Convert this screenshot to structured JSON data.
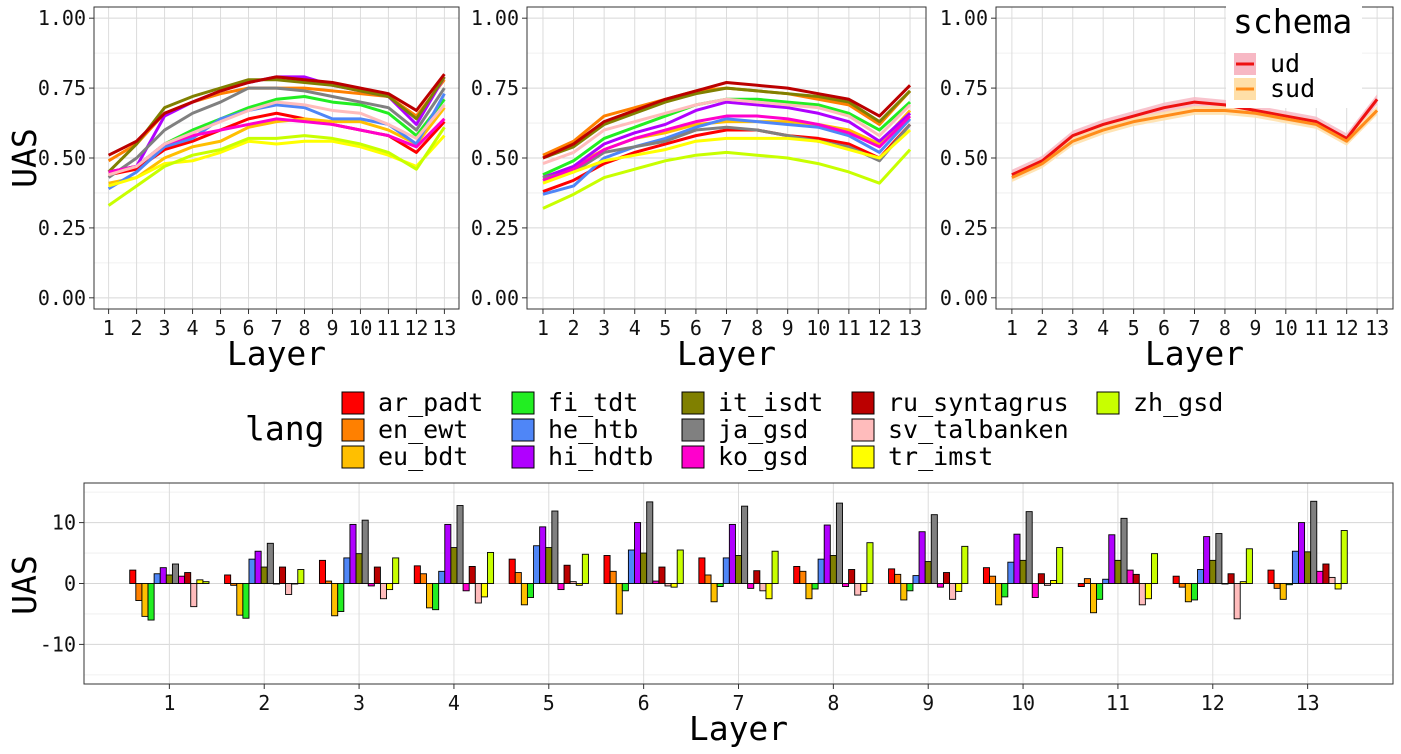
{
  "colors": {
    "ar_padt": "#ff0000",
    "en_ewt": "#ff8000",
    "eu_bdt": "#ffbf00",
    "fi_tdt": "#22ee22",
    "he_htb": "#4f86f7",
    "hi_hdtb": "#b000ff",
    "it_isdt": "#808000",
    "ja_gsd": "#808080",
    "ko_gsd": "#ff00cc",
    "ru_syntagrus": "#bb0000",
    "sv_talbanken": "#ffbcbc",
    "tr_imst": "#ffff00",
    "zh_gsd": "#c8ff00",
    "ud": "#ee1111",
    "ud_band": "#f7b8c4",
    "sud": "#ff8c1a",
    "sud_band": "#ffdfa8"
  },
  "legend_lang": {
    "title": "lang",
    "items": [
      "ar_padt",
      "en_ewt",
      "eu_bdt",
      "fi_tdt",
      "he_htb",
      "hi_hdtb",
      "it_isdt",
      "ja_gsd",
      "ko_gsd",
      "ru_syntagrus",
      "sv_talbanken",
      "tr_imst",
      "zh_gsd"
    ]
  },
  "legend_schema": {
    "title": "schema",
    "items": [
      "ud",
      "sud"
    ]
  },
  "chart_data": [
    {
      "type": "line",
      "xlabel": "Layer",
      "ylabel": "UAS",
      "x": [
        1,
        2,
        3,
        4,
        5,
        6,
        7,
        8,
        9,
        10,
        11,
        12,
        13
      ],
      "ylim": [
        -0.04,
        1.04
      ],
      "yticks": [
        "0.00",
        "0.25",
        "0.50",
        "0.75",
        "1.00"
      ],
      "grid": true,
      "series": [
        {
          "name": "ar_padt",
          "values": [
            0.44,
            0.46,
            0.53,
            0.56,
            0.6,
            0.64,
            0.66,
            0.64,
            0.62,
            0.6,
            0.58,
            0.52,
            0.63
          ]
        },
        {
          "name": "en_ewt",
          "values": [
            0.49,
            0.55,
            0.66,
            0.7,
            0.73,
            0.75,
            0.75,
            0.75,
            0.74,
            0.73,
            0.72,
            0.65,
            0.78
          ]
        },
        {
          "name": "eu_bdt",
          "values": [
            0.41,
            0.43,
            0.5,
            0.54,
            0.56,
            0.61,
            0.63,
            0.64,
            0.63,
            0.63,
            0.6,
            0.55,
            0.68
          ]
        },
        {
          "name": "fi_tdt",
          "values": [
            0.45,
            0.47,
            0.55,
            0.6,
            0.64,
            0.68,
            0.71,
            0.72,
            0.7,
            0.69,
            0.66,
            0.58,
            0.71
          ]
        },
        {
          "name": "he_htb",
          "values": [
            0.39,
            0.45,
            0.54,
            0.57,
            0.64,
            0.67,
            0.69,
            0.68,
            0.64,
            0.64,
            0.62,
            0.55,
            0.73
          ]
        },
        {
          "name": "hi_hdtb",
          "values": [
            0.45,
            0.47,
            0.65,
            0.7,
            0.74,
            0.77,
            0.79,
            0.79,
            0.76,
            0.74,
            0.72,
            0.62,
            0.79
          ]
        },
        {
          "name": "it_isdt",
          "values": [
            0.45,
            0.55,
            0.68,
            0.72,
            0.75,
            0.78,
            0.78,
            0.77,
            0.76,
            0.74,
            0.72,
            0.64,
            0.79
          ]
        },
        {
          "name": "ja_gsd",
          "values": [
            0.43,
            0.5,
            0.6,
            0.66,
            0.7,
            0.75,
            0.75,
            0.74,
            0.72,
            0.7,
            0.68,
            0.6,
            0.75
          ]
        },
        {
          "name": "ko_gsd",
          "values": [
            0.45,
            0.47,
            0.55,
            0.58,
            0.6,
            0.62,
            0.64,
            0.63,
            0.62,
            0.6,
            0.58,
            0.54,
            0.64
          ]
        },
        {
          "name": "ru_syntagrus",
          "values": [
            0.51,
            0.56,
            0.66,
            0.7,
            0.74,
            0.77,
            0.79,
            0.78,
            0.77,
            0.75,
            0.73,
            0.67,
            0.8
          ]
        },
        {
          "name": "sv_talbanken",
          "values": [
            0.44,
            0.47,
            0.55,
            0.59,
            0.63,
            0.67,
            0.7,
            0.69,
            0.67,
            0.66,
            0.62,
            0.57,
            0.69
          ]
        },
        {
          "name": "tr_imst",
          "values": [
            0.4,
            0.43,
            0.48,
            0.49,
            0.52,
            0.56,
            0.55,
            0.56,
            0.56,
            0.54,
            0.51,
            0.47,
            0.58
          ]
        },
        {
          "name": "zh_gsd",
          "values": [
            0.33,
            0.4,
            0.47,
            0.51,
            0.53,
            0.57,
            0.57,
            0.58,
            0.57,
            0.55,
            0.52,
            0.46,
            0.61
          ]
        }
      ]
    },
    {
      "type": "line",
      "xlabel": "Layer",
      "ylabel": "",
      "x": [
        1,
        2,
        3,
        4,
        5,
        6,
        7,
        8,
        9,
        10,
        11,
        12,
        13
      ],
      "ylim": [
        -0.04,
        1.04
      ],
      "yticks": [
        "0.00",
        "0.25",
        "0.50",
        "0.75",
        "1.00"
      ],
      "grid": true,
      "series": [
        {
          "name": "ar_padt",
          "values": [
            0.38,
            0.42,
            0.48,
            0.52,
            0.55,
            0.58,
            0.6,
            0.6,
            0.58,
            0.57,
            0.55,
            0.5,
            0.62
          ]
        },
        {
          "name": "en_ewt",
          "values": [
            0.51,
            0.56,
            0.65,
            0.68,
            0.71,
            0.74,
            0.75,
            0.74,
            0.73,
            0.71,
            0.69,
            0.62,
            0.74
          ]
        },
        {
          "name": "eu_bdt",
          "values": [
            0.43,
            0.47,
            0.53,
            0.57,
            0.59,
            0.62,
            0.63,
            0.63,
            0.63,
            0.62,
            0.6,
            0.55,
            0.67
          ]
        },
        {
          "name": "fi_tdt",
          "values": [
            0.44,
            0.49,
            0.57,
            0.61,
            0.65,
            0.69,
            0.71,
            0.71,
            0.7,
            0.69,
            0.66,
            0.6,
            0.7
          ]
        },
        {
          "name": "he_htb",
          "values": [
            0.37,
            0.4,
            0.5,
            0.54,
            0.57,
            0.61,
            0.64,
            0.63,
            0.62,
            0.61,
            0.58,
            0.52,
            0.64
          ]
        },
        {
          "name": "hi_hdtb",
          "values": [
            0.43,
            0.47,
            0.55,
            0.59,
            0.62,
            0.67,
            0.7,
            0.69,
            0.68,
            0.66,
            0.63,
            0.56,
            0.66
          ]
        },
        {
          "name": "it_isdt",
          "values": [
            0.5,
            0.54,
            0.62,
            0.66,
            0.7,
            0.73,
            0.75,
            0.74,
            0.73,
            0.72,
            0.7,
            0.63,
            0.74
          ]
        },
        {
          "name": "ja_gsd",
          "values": [
            0.43,
            0.45,
            0.52,
            0.54,
            0.56,
            0.6,
            0.61,
            0.6,
            0.58,
            0.56,
            0.54,
            0.49,
            0.62
          ]
        },
        {
          "name": "ko_gsd",
          "values": [
            0.42,
            0.46,
            0.53,
            0.57,
            0.6,
            0.63,
            0.65,
            0.65,
            0.64,
            0.62,
            0.59,
            0.54,
            0.65
          ]
        },
        {
          "name": "ru_syntagrus",
          "values": [
            0.5,
            0.55,
            0.63,
            0.67,
            0.71,
            0.74,
            0.77,
            0.76,
            0.75,
            0.73,
            0.71,
            0.65,
            0.76
          ]
        },
        {
          "name": "sv_talbanken",
          "values": [
            0.48,
            0.52,
            0.6,
            0.63,
            0.66,
            0.69,
            0.71,
            0.7,
            0.69,
            0.68,
            0.65,
            0.58,
            0.69
          ]
        },
        {
          "name": "tr_imst",
          "values": [
            0.41,
            0.45,
            0.49,
            0.51,
            0.53,
            0.56,
            0.57,
            0.57,
            0.57,
            0.56,
            0.53,
            0.5,
            0.6
          ]
        },
        {
          "name": "zh_gsd",
          "values": [
            0.32,
            0.37,
            0.43,
            0.46,
            0.49,
            0.51,
            0.52,
            0.51,
            0.5,
            0.48,
            0.45,
            0.41,
            0.53
          ]
        }
      ]
    },
    {
      "type": "line",
      "xlabel": "Layer",
      "ylabel": "",
      "x": [
        1,
        2,
        3,
        4,
        5,
        6,
        7,
        8,
        9,
        10,
        11,
        12,
        13
      ],
      "ylim": [
        -0.04,
        1.04
      ],
      "yticks": [
        "0.00",
        "0.25",
        "0.50",
        "0.75",
        "1.00"
      ],
      "grid": true,
      "series": [
        {
          "name": "ud",
          "values": [
            0.44,
            0.49,
            0.58,
            0.62,
            0.65,
            0.68,
            0.7,
            0.69,
            0.67,
            0.65,
            0.63,
            0.57,
            0.71
          ],
          "band": 0.018
        },
        {
          "name": "sud",
          "values": [
            0.43,
            0.48,
            0.56,
            0.6,
            0.63,
            0.65,
            0.67,
            0.67,
            0.66,
            0.64,
            0.62,
            0.56,
            0.67
          ],
          "band": 0.016
        }
      ]
    },
    {
      "type": "bar",
      "xlabel": "Layer",
      "ylabel": "UAS",
      "categories": [
        "1",
        "2",
        "3",
        "4",
        "5",
        "6",
        "7",
        "8",
        "9",
        "10",
        "11",
        "12",
        "13"
      ],
      "ylim": [
        -16.5,
        16.5
      ],
      "yticks": [
        -10,
        0,
        10
      ],
      "grid": true,
      "series": [
        {
          "name": "ar_padt",
          "values": [
            2.2,
            1.4,
            3.8,
            2.9,
            4,
            4.6,
            4.2,
            2.8,
            2.4,
            2.6,
            -0.5,
            1.2,
            2.2
          ]
        },
        {
          "name": "en_ewt",
          "values": [
            -2.8,
            -0.3,
            0.4,
            1.6,
            1.8,
            2,
            1.4,
            2,
            1.5,
            1.2,
            0.8,
            -0.6,
            -0.8
          ]
        },
        {
          "name": "eu_bdt",
          "values": [
            -5.4,
            -5.2,
            -5.3,
            -4,
            -3.5,
            -5,
            -3,
            -2.5,
            -2.7,
            -3.5,
            -4.8,
            -3,
            -2.6
          ]
        },
        {
          "name": "fi_tdt",
          "values": [
            -6,
            -5.7,
            -4.6,
            -4.3,
            -2.3,
            -1.2,
            -0.5,
            -0.9,
            -1.2,
            -2.2,
            -2.6,
            -2.7,
            -0.2
          ]
        },
        {
          "name": "he_htb",
          "values": [
            1.6,
            4,
            4.2,
            2,
            6.2,
            5.5,
            4.2,
            4,
            1.3,
            3.5,
            0.7,
            2.3,
            5.3
          ]
        },
        {
          "name": "hi_hdtb",
          "values": [
            2.6,
            5.3,
            9.7,
            9.7,
            9.3,
            10,
            9.7,
            9.6,
            8.5,
            8.1,
            8,
            7.7,
            10
          ]
        },
        {
          "name": "it_isdt",
          "values": [
            1.4,
            2.7,
            4.9,
            5.9,
            5.9,
            5,
            4.6,
            4.6,
            3.6,
            3.8,
            3.8,
            3.8,
            5.2
          ]
        },
        {
          "name": "ja_gsd",
          "values": [
            3.2,
            6.6,
            10.4,
            12.8,
            11.9,
            13.4,
            12.7,
            13.2,
            11.3,
            11.8,
            10.7,
            8.2,
            13.5
          ]
        },
        {
          "name": "ko_gsd",
          "values": [
            1.2,
            0,
            -0.4,
            -1.2,
            -1,
            0.4,
            -0.8,
            -0.5,
            -0.6,
            -2.3,
            2.2,
            0,
            2
          ]
        },
        {
          "name": "ru_syntagrus",
          "values": [
            1.8,
            2.7,
            2.7,
            2.8,
            3,
            2.7,
            2.1,
            2.3,
            1.8,
            1.6,
            1.5,
            1.6,
            3.2
          ]
        },
        {
          "name": "sv_talbanken",
          "values": [
            -3.8,
            -1.8,
            -2.5,
            -3.2,
            0.3,
            -0.4,
            -1.2,
            -1.9,
            -2.6,
            -0.3,
            -3.5,
            -5.8,
            1
          ]
        },
        {
          "name": "tr_imst",
          "values": [
            0.6,
            0,
            -1,
            -2.2,
            -0.3,
            -0.6,
            -2.5,
            -1.3,
            -1.3,
            0.5,
            -2.5,
            0.3,
            -0.9
          ]
        },
        {
          "name": "zh_gsd",
          "values": [
            0.3,
            2.3,
            4.2,
            5.1,
            4.8,
            5.5,
            5.3,
            6.7,
            6.1,
            5.9,
            4.9,
            5.7,
            8.7
          ]
        }
      ]
    }
  ]
}
